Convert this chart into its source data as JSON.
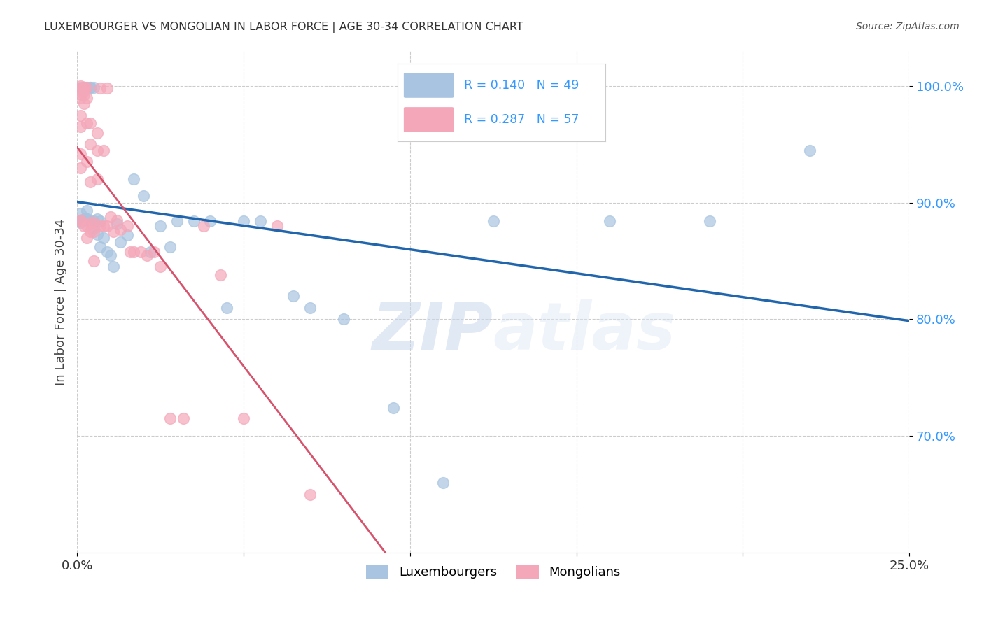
{
  "title": "LUXEMBOURGER VS MONGOLIAN IN LABOR FORCE | AGE 30-34 CORRELATION CHART",
  "source_text": "Source: ZipAtlas.com",
  "ylabel": "In Labor Force | Age 30-34",
  "xlim": [
    0.0,
    0.25
  ],
  "ylim": [
    0.6,
    1.03
  ],
  "yticks": [
    0.7,
    0.8,
    0.9,
    1.0
  ],
  "ytick_labels": [
    "70.0%",
    "80.0%",
    "90.0%",
    "100.0%"
  ],
  "xticks": [
    0.0,
    0.05,
    0.1,
    0.15,
    0.2,
    0.25
  ],
  "xtick_labels": [
    "0.0%",
    "",
    "",
    "",
    "",
    "25.0%"
  ],
  "lux_R": 0.14,
  "lux_N": 49,
  "mon_R": 0.287,
  "mon_N": 57,
  "lux_color": "#a8c4e0",
  "mon_color": "#f4a7b9",
  "lux_line_color": "#2166ac",
  "mon_line_color": "#d6536d",
  "watermark_zip": "ZIP",
  "watermark_atlas": "atlas",
  "lux_x": [
    0.001,
    0.001,
    0.001,
    0.001,
    0.002,
    0.002,
    0.002,
    0.002,
    0.003,
    0.003,
    0.003,
    0.003,
    0.004,
    0.004,
    0.004,
    0.005,
    0.005,
    0.005,
    0.006,
    0.006,
    0.007,
    0.007,
    0.008,
    0.009,
    0.01,
    0.011,
    0.012,
    0.013,
    0.015,
    0.017,
    0.02,
    0.022,
    0.025,
    0.028,
    0.03,
    0.035,
    0.04,
    0.045,
    0.05,
    0.055,
    0.065,
    0.07,
    0.08,
    0.095,
    0.11,
    0.125,
    0.16,
    0.19,
    0.22
  ],
  "lux_y": [
    0.884,
    0.891,
    0.883,
    0.999,
    0.886,
    0.999,
    0.999,
    0.999,
    0.886,
    0.893,
    0.886,
    0.999,
    0.884,
    0.999,
    0.999,
    0.884,
    0.878,
    0.999,
    0.886,
    0.873,
    0.862,
    0.884,
    0.87,
    0.858,
    0.855,
    0.845,
    0.882,
    0.866,
    0.872,
    0.92,
    0.906,
    0.858,
    0.88,
    0.862,
    0.884,
    0.884,
    0.884,
    0.81,
    0.884,
    0.884,
    0.82,
    0.81,
    0.8,
    0.724,
    0.66,
    0.884,
    0.884,
    0.884,
    0.945
  ],
  "mon_x": [
    0.001,
    0.001,
    0.001,
    0.001,
    0.001,
    0.001,
    0.001,
    0.001,
    0.001,
    0.001,
    0.002,
    0.002,
    0.002,
    0.002,
    0.002,
    0.002,
    0.003,
    0.003,
    0.003,
    0.003,
    0.003,
    0.003,
    0.004,
    0.004,
    0.004,
    0.004,
    0.004,
    0.005,
    0.005,
    0.005,
    0.006,
    0.006,
    0.006,
    0.007,
    0.007,
    0.008,
    0.008,
    0.009,
    0.009,
    0.01,
    0.011,
    0.012,
    0.013,
    0.015,
    0.016,
    0.017,
    0.019,
    0.021,
    0.023,
    0.025,
    0.028,
    0.032,
    0.038,
    0.043,
    0.05,
    0.06,
    0.07
  ],
  "mon_y": [
    0.885,
    0.93,
    0.965,
    0.975,
    0.99,
    1.0,
    0.998,
    0.993,
    0.942,
    0.885,
    0.999,
    0.996,
    0.999,
    0.993,
    0.985,
    0.88,
    0.935,
    0.88,
    0.999,
    0.87,
    0.99,
    0.968,
    0.95,
    0.968,
    0.918,
    0.883,
    0.875,
    0.875,
    0.85,
    0.883,
    0.96,
    0.92,
    0.945,
    0.88,
    0.998,
    0.945,
    0.88,
    0.998,
    0.88,
    0.888,
    0.875,
    0.885,
    0.877,
    0.88,
    0.858,
    0.858,
    0.858,
    0.855,
    0.858,
    0.845,
    0.715,
    0.715,
    0.88,
    0.838,
    0.715,
    0.88,
    0.65
  ]
}
